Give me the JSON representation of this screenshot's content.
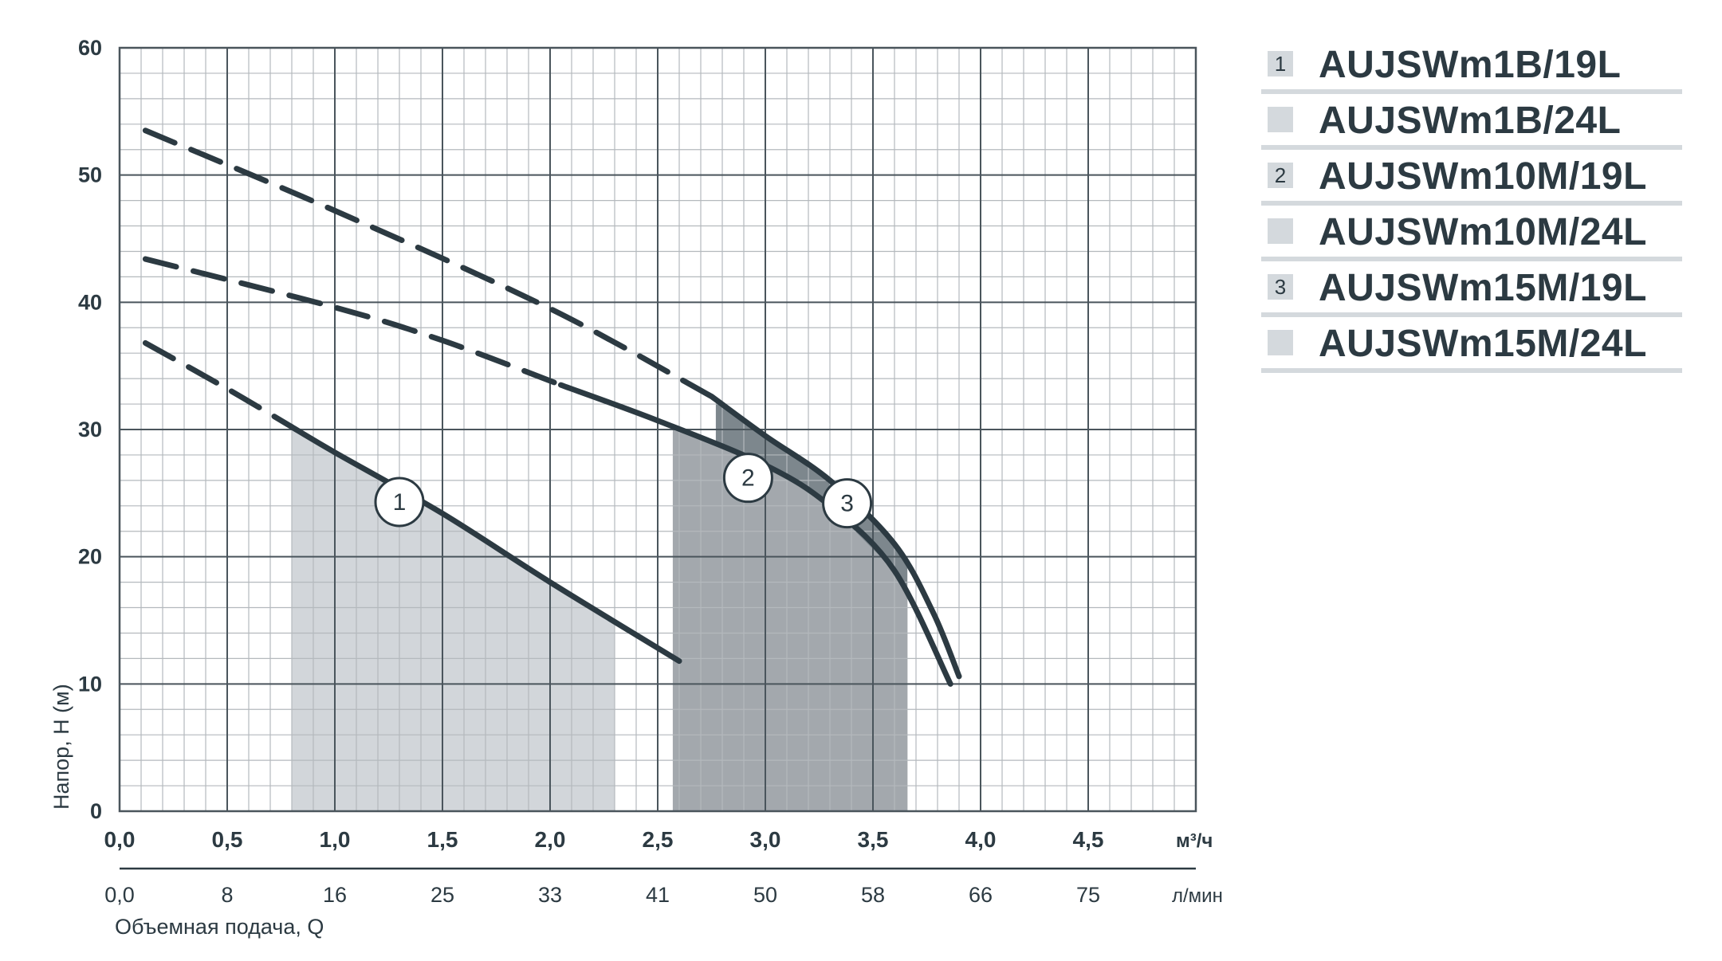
{
  "chart_data": {
    "type": "line",
    "ylabel": "Напор, Н (м)",
    "xlabel": "Объемная подача, Q",
    "x_unit": "м³/ч",
    "x2_unit": "л/мин",
    "ylim": [
      0,
      60
    ],
    "xlim": [
      0,
      5.0
    ],
    "y_ticks": [
      "0",
      "10",
      "20",
      "30",
      "40",
      "50",
      "60"
    ],
    "x_ticks": [
      "0,0",
      "0,5",
      "1,0",
      "1,5",
      "2,0",
      "2,5",
      "3,0",
      "3,5",
      "4,0",
      "4,5"
    ],
    "x2_ticks": [
      "0,0",
      "8",
      "16",
      "25",
      "33",
      "41",
      "50",
      "58",
      "66",
      "75"
    ],
    "grid": true,
    "series": [
      {
        "label": "1",
        "solid": [
          [
            0.8,
            30.2
          ],
          [
            1.0,
            28.2
          ],
          [
            1.5,
            23.4
          ],
          [
            2.0,
            18.0
          ],
          [
            2.6,
            11.8
          ]
        ],
        "dashed": [
          [
            0.12,
            36.8
          ],
          [
            0.5,
            33.2
          ],
          [
            0.8,
            30.2
          ]
        ],
        "working_range": [
          0.8,
          2.3
        ]
      },
      {
        "label": "2",
        "solid": [
          [
            2.05,
            33.5
          ],
          [
            2.5,
            30.7
          ],
          [
            3.0,
            27.2
          ],
          [
            3.3,
            24.0
          ],
          [
            3.6,
            18.9
          ],
          [
            3.86,
            10.0
          ]
        ],
        "dashed": [
          [
            0.12,
            43.4
          ],
          [
            1.0,
            39.6
          ],
          [
            1.5,
            37.0
          ],
          [
            2.05,
            33.5
          ]
        ],
        "working_range": [
          2.57,
          3.66
        ]
      },
      {
        "label": "3",
        "solid": [
          [
            2.75,
            32.6
          ],
          [
            3.0,
            29.5
          ],
          [
            3.3,
            26.0
          ],
          [
            3.6,
            21.0
          ],
          [
            3.78,
            15.6
          ],
          [
            3.9,
            10.6
          ]
        ],
        "dashed": [
          [
            0.12,
            53.5
          ],
          [
            1.0,
            47.2
          ],
          [
            2.0,
            39.5
          ],
          [
            2.75,
            32.6
          ]
        ],
        "working_range": [
          2.77,
          3.66
        ]
      }
    ],
    "legend": [
      {
        "num": "1",
        "text": "AUJSWm1B/19L"
      },
      {
        "num": "",
        "text": "AUJSWm1B/24L"
      },
      {
        "num": "2",
        "text": "AUJSWm10M/19L"
      },
      {
        "num": "",
        "text": "AUJSWm10M/24L"
      },
      {
        "num": "3",
        "text": "AUJSWm15M/19L"
      },
      {
        "num": "",
        "text": "AUJSWm15M/24L"
      }
    ],
    "colors": {
      "line": "#2c3a42",
      "grid_major": "#4a555c",
      "grid_minor": "#b4b9bd",
      "region_1": "#d2d6da",
      "region_2": "#a3a8ad",
      "region_3": "#7d878d",
      "legend_bg": "#d4d9dd"
    }
  }
}
